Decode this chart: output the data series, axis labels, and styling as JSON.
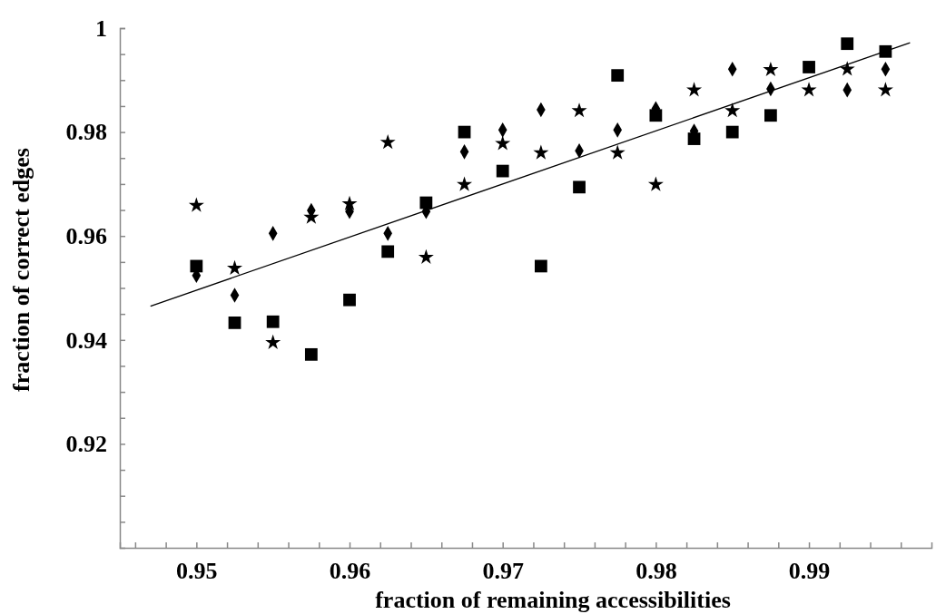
{
  "chart_data": {
    "type": "scatter",
    "xlabel": "fraction of remaining accessibilities",
    "ylabel": "fraction of correct edges",
    "x": [
      0.95,
      0.9525,
      0.955,
      0.9575,
      0.96,
      0.9625,
      0.965,
      0.9675,
      0.97,
      0.9725,
      0.975,
      0.9775,
      0.98,
      0.9825,
      0.985,
      0.9875,
      0.99,
      0.9925,
      0.995
    ],
    "xlim": [
      0.945,
      0.998
    ],
    "ylim": [
      0.9,
      1
    ],
    "xticks": [
      {
        "value": 0.946,
        "label": null
      },
      {
        "value": 0.948,
        "label": null
      },
      0.95,
      {
        "value": 0.952,
        "label": null
      },
      {
        "value": 0.954,
        "label": null
      },
      {
        "value": 0.956,
        "label": null
      },
      {
        "value": 0.958,
        "label": null
      },
      0.96,
      {
        "value": 0.962,
        "label": null
      },
      {
        "value": 0.964,
        "label": null
      },
      {
        "value": 0.966,
        "label": null
      },
      {
        "value": 0.968,
        "label": null
      },
      0.97,
      {
        "value": 0.972,
        "label": null
      },
      {
        "value": 0.974,
        "label": null
      },
      {
        "value": 0.976,
        "label": null
      },
      {
        "value": 0.978,
        "label": null
      },
      0.98,
      {
        "value": 0.982,
        "label": null
      },
      {
        "value": 0.984,
        "label": null
      },
      {
        "value": 0.986,
        "label": null
      },
      {
        "value": 0.988,
        "label": null
      },
      0.99,
      {
        "value": 0.992,
        "label": null
      },
      {
        "value": 0.994,
        "label": null
      },
      {
        "value": 0.996,
        "label": null
      }
    ],
    "yticks": [
      {
        "value": 0.905,
        "label": null
      },
      {
        "value": 0.91,
        "label": null
      },
      {
        "value": 0.915,
        "label": null
      },
      0.92,
      {
        "value": 0.925,
        "label": null
      },
      {
        "value": 0.93,
        "label": null
      },
      {
        "value": 0.935,
        "label": null
      },
      0.94,
      {
        "value": 0.945,
        "label": null
      },
      {
        "value": 0.95,
        "label": null
      },
      {
        "value": 0.955,
        "label": null
      },
      0.96,
      {
        "value": 0.965,
        "label": null
      },
      {
        "value": 0.97,
        "label": null
      },
      {
        "value": 0.975,
        "label": null
      },
      0.98,
      {
        "value": 0.985,
        "label": null
      },
      {
        "value": 0.99,
        "label": null
      },
      {
        "value": 0.995,
        "label": null
      },
      1
    ],
    "grid": false,
    "series": [
      {
        "color": "#000000",
        "marker": "square",
        "values": [
          0.9542,
          0.9433,
          0.9435,
          0.9372,
          0.9477,
          0.957,
          0.9664,
          0.98,
          0.9725,
          0.9542,
          0.9694,
          0.9909,
          0.9832,
          0.9787,
          0.98,
          0.9832,
          0.9925,
          0.997,
          0.9955
        ]
      },
      {
        "color": "#000000",
        "marker": "diamond",
        "values": [
          0.9524,
          0.9486,
          0.9605,
          0.9649,
          0.9647,
          0.9605,
          0.9647,
          0.9762,
          0.9804,
          0.9843,
          0.9764,
          0.9804,
          0.9845,
          0.9802,
          0.9921,
          0.9883,
          null,
          0.9881,
          0.9921
        ]
      },
      {
        "color": "#000000",
        "marker": "star",
        "values": [
          0.9659,
          0.9538,
          0.9395,
          0.9636,
          0.9662,
          0.978,
          0.9559,
          0.9699,
          0.9778,
          0.976,
          0.9841,
          0.976,
          0.9699,
          0.9881,
          0.9841,
          0.992,
          0.9881,
          0.9921,
          0.9881
        ]
      },
      {
        "type": "line",
        "color": "#000000",
        "marker": "none",
        "line_style": "solid",
        "x": [
          0.947,
          0.9966
        ],
        "values": [
          0.9465,
          0.9972
        ]
      }
    ]
  }
}
